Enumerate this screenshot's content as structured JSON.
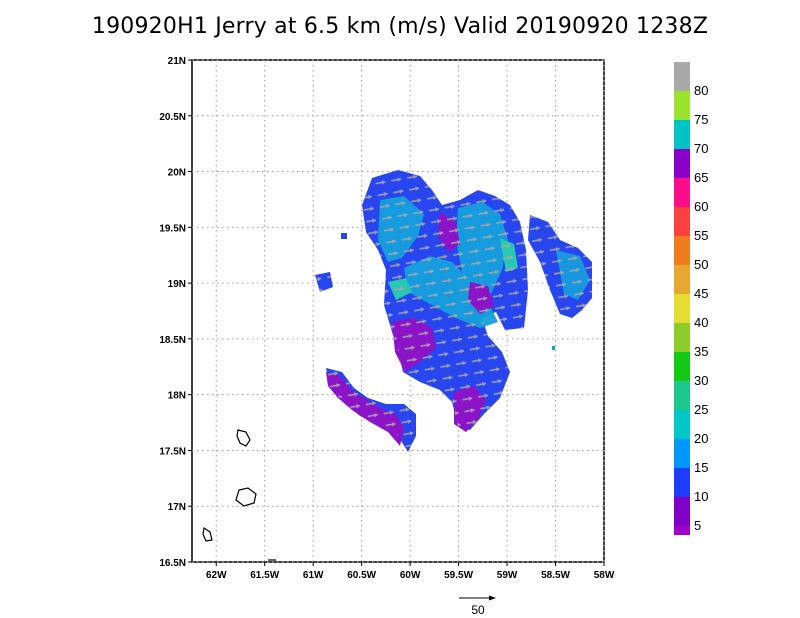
{
  "title": "190920H1 Jerry at 6.5 km (m/s) Valid 20190920  1238Z",
  "map": {
    "lat_labels": [
      "21N",
      "20.5N",
      "20N",
      "19.5N",
      "19N",
      "18.5N",
      "18N",
      "17.5N",
      "17N",
      "16.5N"
    ],
    "lon_labels": [
      "62W",
      "61.5W",
      "61W",
      "60.5W",
      "60W",
      "59.5W",
      "59W",
      "58.5W",
      "58W"
    ],
    "lat_range": [
      16.5,
      21.0
    ],
    "lon_range": [
      -62.25,
      -58.0
    ],
    "grid": "dotted"
  },
  "colorbar": {
    "labels": [
      "80",
      "75",
      "70",
      "65",
      "60",
      "55",
      "50",
      "45",
      "40",
      "35",
      "30",
      "25",
      "20",
      "15",
      "10",
      "5"
    ],
    "colors": [
      "#a9a9a9",
      "#9be22c",
      "#00c4c4",
      "#8a00c8",
      "#ff0c8a",
      "#ff4040",
      "#f07c20",
      "#e6a832",
      "#e6dc32",
      "#8ccc2c",
      "#16c816",
      "#1ec88c",
      "#00c8c8",
      "#0096ff",
      "#1e3cff",
      "#8000c8",
      "#a000c8"
    ]
  },
  "scale_vector": {
    "label": "50"
  },
  "colors": {
    "purple": "#8c14c8",
    "blue": "#2846f0",
    "cyan": "#14a0dc",
    "teal": "#28c8b4",
    "vector": "#a0a0a0"
  }
}
